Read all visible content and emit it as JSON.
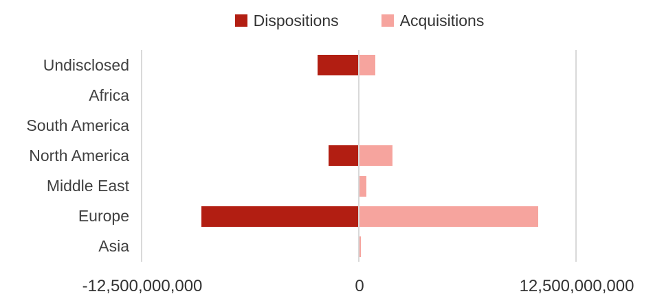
{
  "chart": {
    "background_color": "#FFFFFF",
    "text_color": "#333333",
    "category_text_color": "#404040",
    "gridline_color": "#D9D9D9"
  },
  "legend": {
    "position": "top-center",
    "items": [
      {
        "label": "Dispositions",
        "color": "#B21E12"
      },
      {
        "label": "Acquisitions",
        "color": "#F6A49E"
      }
    ]
  },
  "chart_data": {
    "type": "bar",
    "orientation": "horizontal-diverging",
    "title": "",
    "xlabel": "",
    "ylabel": "",
    "categories": [
      "Undisclosed",
      "Africa",
      "South America",
      "North America",
      "Middle East",
      "Europe",
      "Asia"
    ],
    "series": [
      {
        "name": "Dispositions",
        "color": "#B21E12",
        "values": [
          -2400000000,
          0,
          0,
          -1800000000,
          -80000000,
          -9100000000,
          0
        ]
      },
      {
        "name": "Acquisitions",
        "color": "#F6A49E",
        "values": [
          900000000,
          0,
          0,
          1900000000,
          400000000,
          10300000000,
          60000000
        ]
      }
    ],
    "xlim": [
      -12500000000,
      12500000000
    ],
    "x_ticks": [
      {
        "label": "-12,500,000,000",
        "position_pct": 0
      },
      {
        "label": "0",
        "position_pct": 50
      },
      {
        "label": "12,500,000,000",
        "position_pct": 100
      }
    ],
    "grid": "vertical-lines-at-ticks-only",
    "legend_position": "top"
  }
}
